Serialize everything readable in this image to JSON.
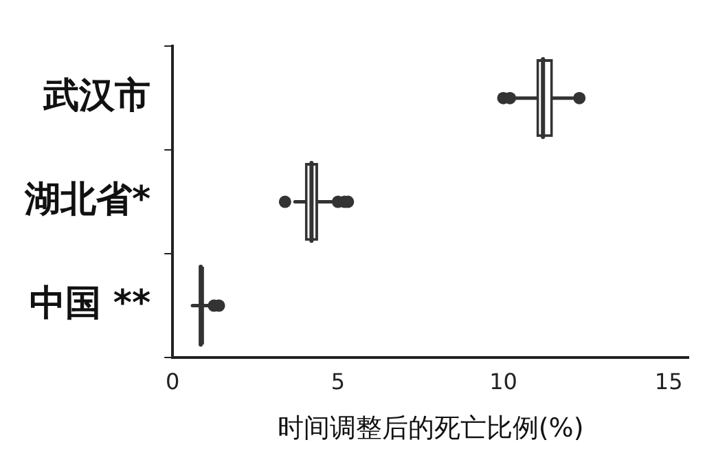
{
  "chart_data": {
    "type": "box",
    "orientation": "horizontal",
    "categories": [
      "武汉市",
      "湖北省*",
      "中国 **"
    ],
    "boxes": [
      {
        "low": 10.3,
        "q1": 11.0,
        "median": 11.2,
        "q3": 11.5,
        "high": 12.1,
        "outliers": [
          10.0,
          10.2,
          12.3
        ]
      },
      {
        "low": 3.7,
        "q1": 4.0,
        "median": 4.2,
        "q3": 4.4,
        "high": 4.8,
        "outliers": [
          3.4,
          5.0,
          5.2,
          5.3
        ]
      },
      {
        "low": 0.6,
        "q1": 0.8,
        "median": 0.85,
        "q3": 0.95,
        "high": 1.1,
        "outliers": [
          1.25,
          1.4
        ]
      }
    ],
    "color": "#333333",
    "xlim": [
      0,
      15.6
    ],
    "xticks": [
      0,
      5,
      10,
      15
    ],
    "xlabel": "时间调整后的死亡比例(%)",
    "grid": false
  }
}
